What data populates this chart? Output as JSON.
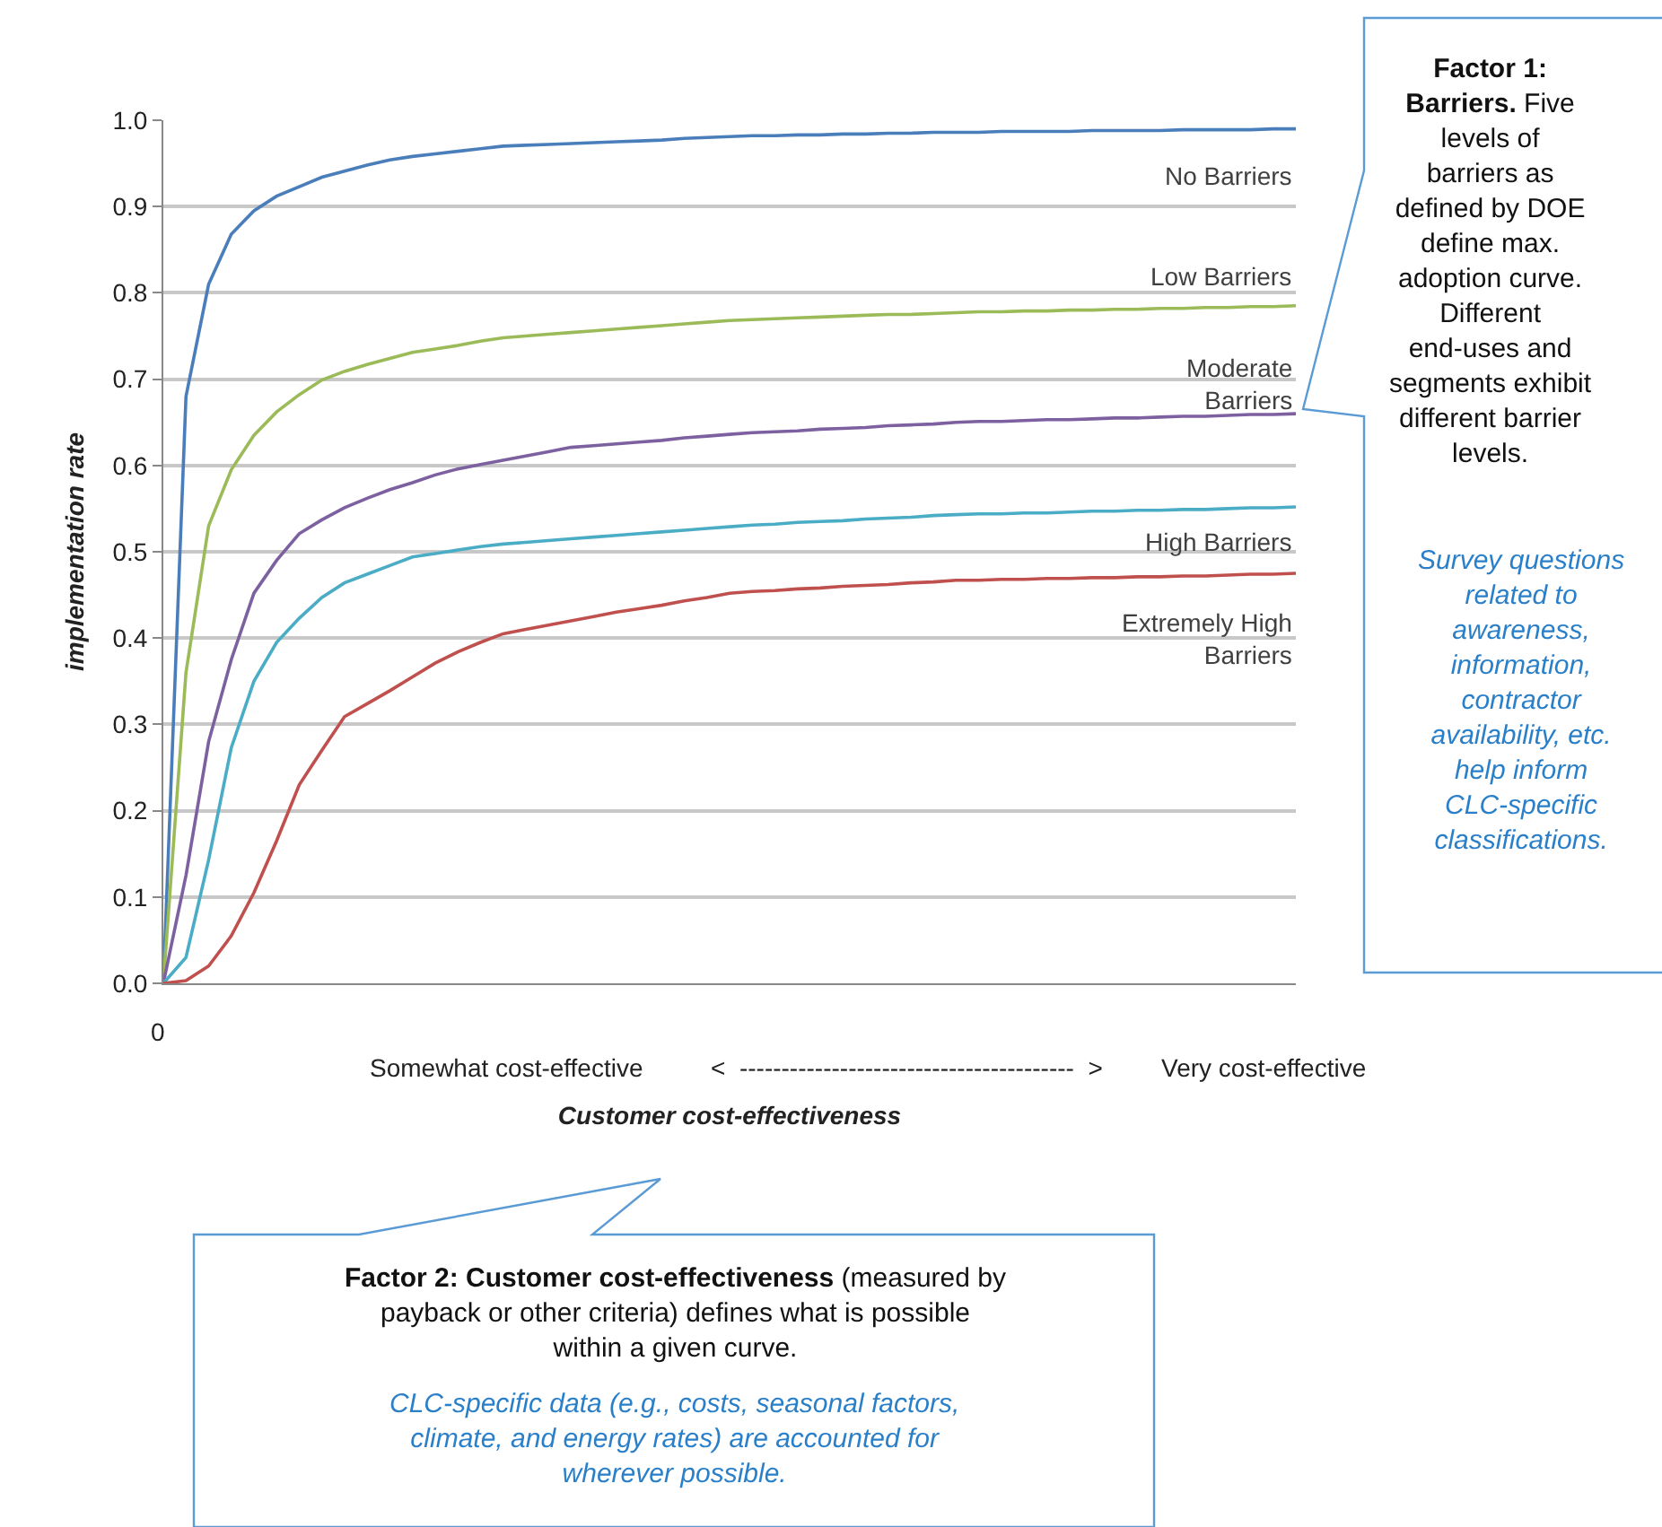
{
  "chart_data": {
    "type": "line",
    "xlabel": "Customer cost-effectiveness",
    "ylabel": "implementation rate",
    "categories": [
      null,
      null,
      null,
      null,
      null,
      null,
      null,
      null,
      null,
      null,
      null,
      null,
      null,
      null,
      null,
      null,
      null,
      null,
      null,
      null,
      null,
      null,
      null,
      null,
      null,
      null,
      null,
      null,
      null,
      null,
      null,
      null,
      null,
      null,
      null,
      null,
      null,
      null,
      null,
      null,
      null,
      null,
      null,
      null,
      null,
      null,
      null,
      null,
      null,
      null,
      null
    ],
    "ylim": [
      0,
      1
    ],
    "yticks": [
      {
        "value": 0,
        "label": "0.0"
      },
      {
        "value": 0.1,
        "label": "0.1"
      },
      {
        "value": 0.2,
        "label": "0.2"
      },
      {
        "value": 0.3,
        "label": "0.3"
      },
      {
        "value": 0.4,
        "label": "0.4"
      },
      {
        "value": 0.5,
        "label": "0.5"
      },
      {
        "value": 0.6,
        "label": "0.6"
      },
      {
        "value": 0.7,
        "label": "0.7"
      },
      {
        "value": 0.8,
        "label": "0.8"
      },
      {
        "value": 0.9,
        "label": "0.9"
      },
      {
        "value": 1,
        "label": "1.0"
      }
    ],
    "grid": "y",
    "legend": false,
    "marker": "none",
    "line_style": "solid",
    "tick_labels": "y",
    "series": [
      {
        "name": "No Barriers",
        "color": "#4a7ebb",
        "values": [
          0,
          0.68,
          0.81,
          0.868,
          0.895,
          0.912,
          0.923,
          0.934,
          0.941,
          0.948,
          0.954,
          0.958,
          0.961,
          0.964,
          0.967,
          0.97,
          0.971,
          0.972,
          0.973,
          0.974,
          0.975,
          0.976,
          0.977,
          0.979,
          0.98,
          0.981,
          0.982,
          0.982,
          0.983,
          0.983,
          0.984,
          0.984,
          0.985,
          0.985,
          0.986,
          0.986,
          0.986,
          0.987,
          0.987,
          0.987,
          0.987,
          0.988,
          0.988,
          0.988,
          0.988,
          0.989,
          0.989,
          0.989,
          0.989,
          0.99,
          0.99
        ]
      },
      {
        "name": "Low Barriers",
        "color": "#9bbb59",
        "values": [
          0,
          0.36,
          0.53,
          0.595,
          0.635,
          0.662,
          0.682,
          0.699,
          0.709,
          0.717,
          0.724,
          0.731,
          0.735,
          0.739,
          0.744,
          0.748,
          0.75,
          0.752,
          0.754,
          0.756,
          0.758,
          0.76,
          0.762,
          0.764,
          0.766,
          0.768,
          0.769,
          0.77,
          0.771,
          0.772,
          0.773,
          0.774,
          0.775,
          0.775,
          0.776,
          0.777,
          0.778,
          0.778,
          0.779,
          0.779,
          0.78,
          0.78,
          0.781,
          0.781,
          0.782,
          0.782,
          0.783,
          0.783,
          0.784,
          0.784,
          0.785
        ]
      },
      {
        "name": "Moderate Barriers",
        "color": "#7d60a0",
        "values": [
          0,
          0.125,
          0.28,
          0.375,
          0.452,
          0.49,
          0.521,
          0.537,
          0.551,
          0.562,
          0.572,
          0.58,
          0.589,
          0.596,
          0.601,
          0.606,
          0.611,
          0.616,
          0.621,
          0.623,
          0.625,
          0.627,
          0.629,
          0.632,
          0.634,
          0.636,
          0.638,
          0.639,
          0.64,
          0.642,
          0.643,
          0.644,
          0.646,
          0.647,
          0.648,
          0.65,
          0.651,
          0.651,
          0.652,
          0.653,
          0.653,
          0.654,
          0.655,
          0.655,
          0.656,
          0.657,
          0.657,
          0.658,
          0.659,
          0.659,
          0.66
        ]
      },
      {
        "name": "High Barriers",
        "color": "#4bacc6",
        "values": [
          0,
          0.03,
          0.143,
          0.273,
          0.35,
          0.395,
          0.423,
          0.447,
          0.464,
          0.474,
          0.484,
          0.494,
          0.498,
          0.502,
          0.506,
          0.509,
          0.511,
          0.513,
          0.515,
          0.517,
          0.519,
          0.521,
          0.523,
          0.525,
          0.527,
          0.529,
          0.531,
          0.532,
          0.534,
          0.535,
          0.536,
          0.538,
          0.539,
          0.54,
          0.542,
          0.543,
          0.544,
          0.544,
          0.545,
          0.545,
          0.546,
          0.547,
          0.547,
          0.548,
          0.548,
          0.549,
          0.549,
          0.55,
          0.551,
          0.551,
          0.552
        ]
      },
      {
        "name": "Extremely High Barriers",
        "color": "#c0504d",
        "values": [
          0,
          0.003,
          0.02,
          0.055,
          0.105,
          0.165,
          0.23,
          0.27,
          0.309,
          0.324,
          0.339,
          0.355,
          0.371,
          0.384,
          0.395,
          0.405,
          0.41,
          0.415,
          0.42,
          0.425,
          0.43,
          0.434,
          0.438,
          0.443,
          0.447,
          0.452,
          0.454,
          0.455,
          0.457,
          0.458,
          0.46,
          0.461,
          0.462,
          0.464,
          0.465,
          0.467,
          0.467,
          0.468,
          0.468,
          0.469,
          0.469,
          0.47,
          0.47,
          0.471,
          0.471,
          0.472,
          0.472,
          0.473,
          0.474,
          0.474,
          0.475
        ]
      }
    ],
    "annotations": [
      "Factor 1: Barriers.",
      "Five levels of barriers as defined by DOE define max. adoption curve. Different end-uses and segments exhibit different barrier levels.",
      "Survey questions related to awareness, information, contractor availability, etc. help inform CLC-specific classifications.",
      "Factor 2: Customer cost-effectiveness",
      "(measured by payback or other criteria) defines what is possible within a given curve.",
      "CLC-specific data (e.g., costs, seasonal factors, climate, and energy rates) are accounted for wherever possible.",
      "Somewhat cost-effective",
      "<  ----------------------------------------  >",
      "Very cost-effective",
      "0"
    ]
  }
}
